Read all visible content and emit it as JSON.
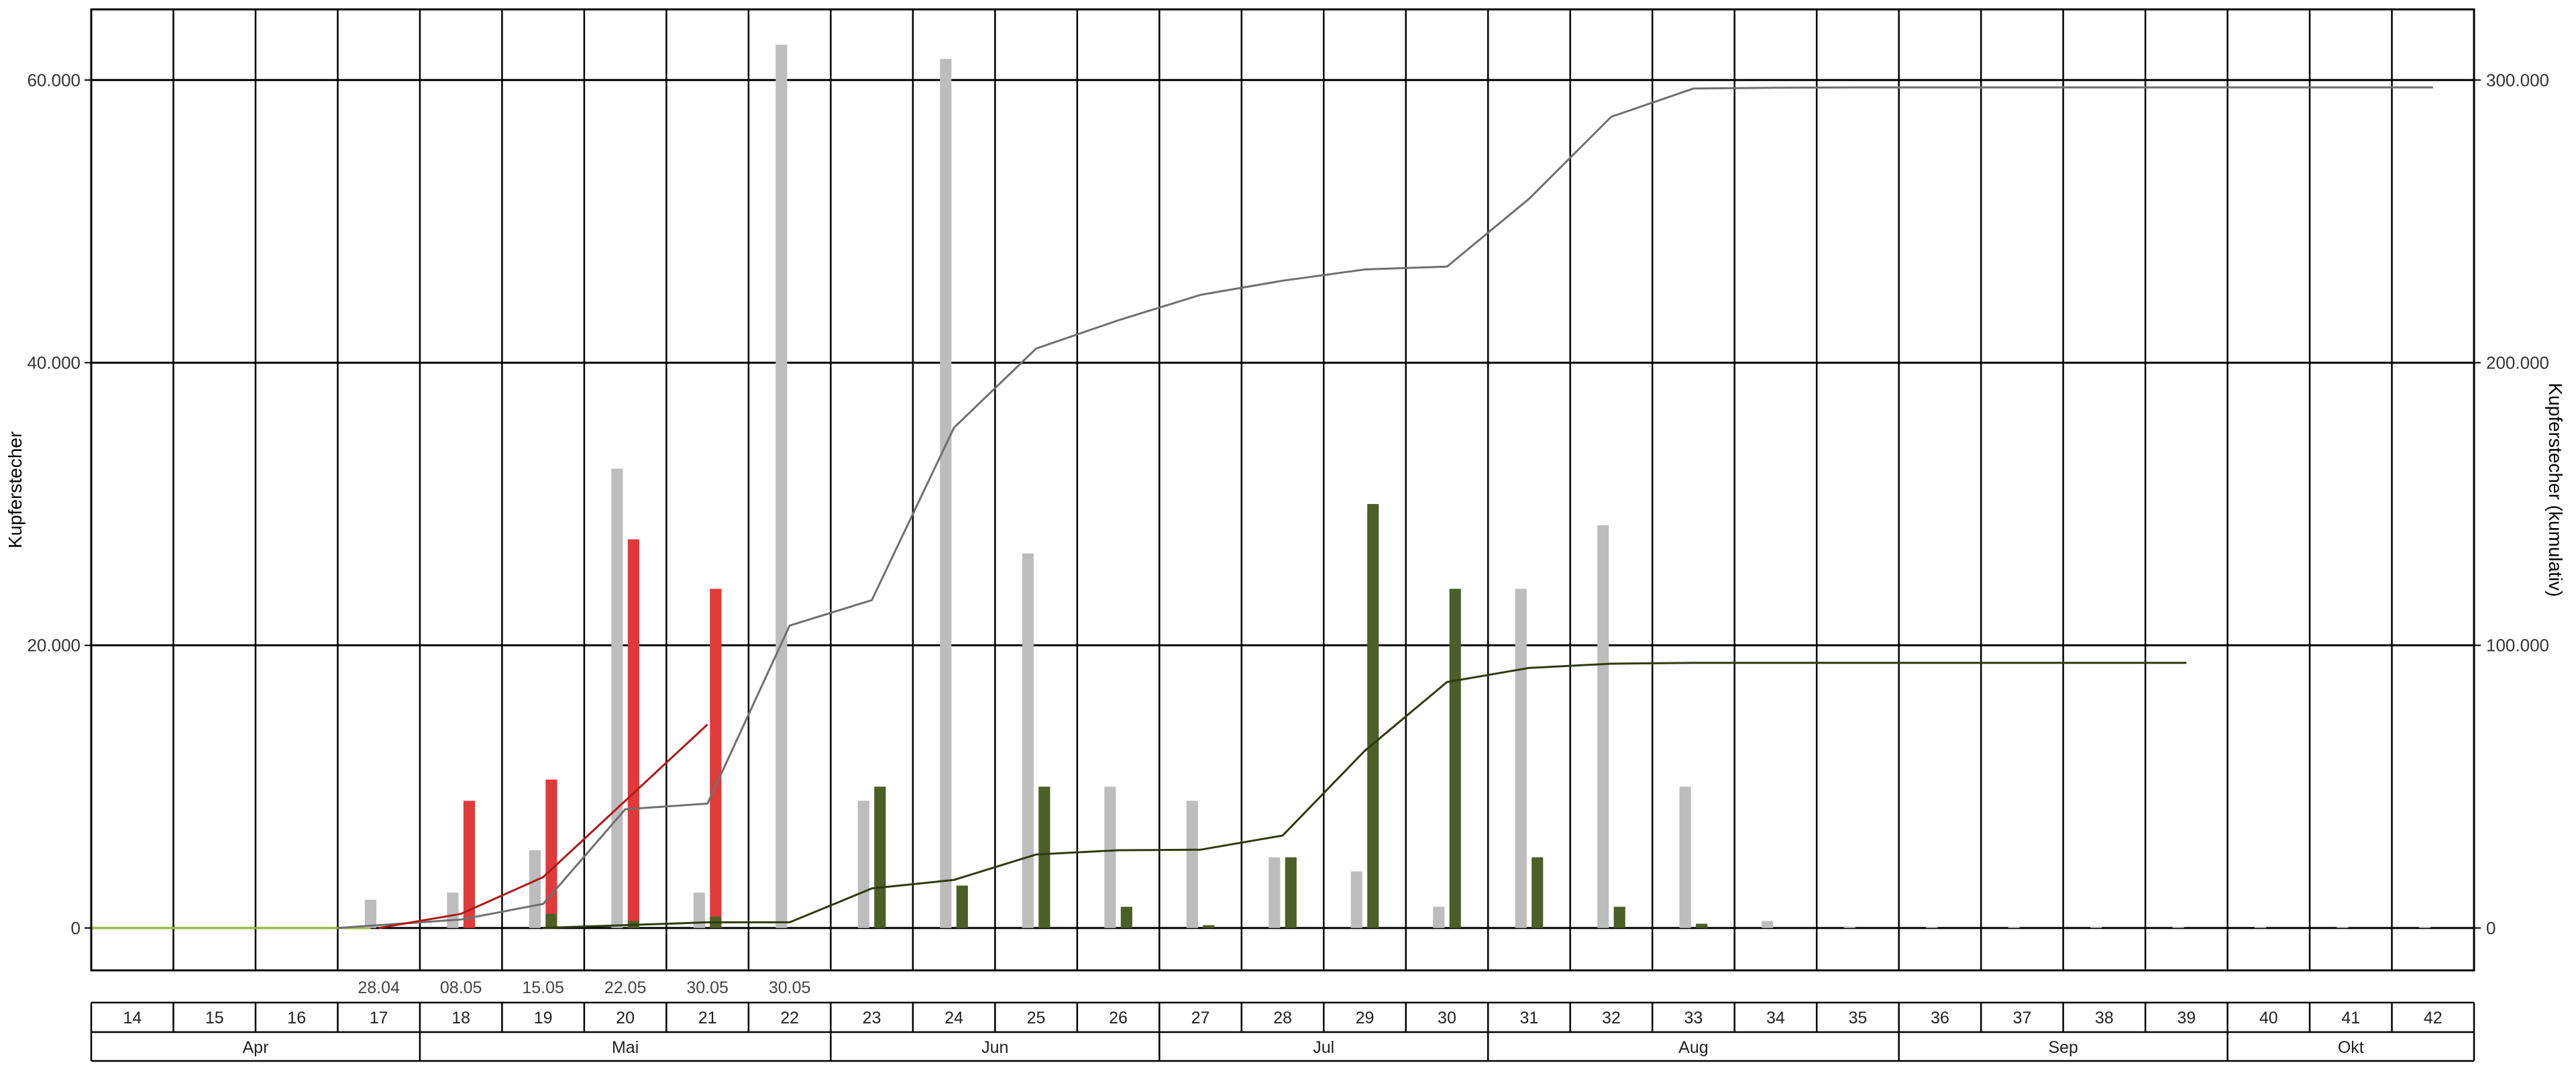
{
  "colors": {
    "grey_bar": "#bdbdbd",
    "red_bar": "#e03a3a",
    "green_bar": "#4d5e27",
    "grey_line": "#707070",
    "red_line": "#b01818",
    "green_line": "#2f3a10",
    "baseline": "#9bbf3a",
    "grid": "#000000"
  },
  "chart_data": {
    "type": "bar",
    "ylabel_left": "Kupferstecher",
    "ylabel_right": "Kupferstecher (kumulativ)",
    "ylim_left": [
      -3000,
      65000
    ],
    "ylim_right": [
      -15000,
      325000
    ],
    "yticks_left": [
      0,
      20000,
      40000,
      60000
    ],
    "ytick_labels_left": [
      "0",
      "20.000",
      "40.000",
      "60.000"
    ],
    "yticks_right": [
      0,
      100000,
      200000,
      300000
    ],
    "ytick_labels_right": [
      "0",
      "100.000",
      "200.000",
      "300.000"
    ],
    "grid": true,
    "weeks": [
      14,
      15,
      16,
      17,
      18,
      19,
      20,
      21,
      22,
      23,
      24,
      25,
      26,
      27,
      28,
      29,
      30,
      31,
      32,
      33,
      34,
      35,
      36,
      37,
      38,
      39,
      40,
      41,
      42
    ],
    "week_labels": [
      "14",
      "15",
      "16",
      "17",
      "18",
      "19",
      "20",
      "21",
      "22",
      "23",
      "24",
      "25",
      "26",
      "27",
      "28",
      "29",
      "30",
      "31",
      "32",
      "33",
      "34",
      "35",
      "36",
      "37",
      "38",
      "39",
      "40",
      "41",
      "42"
    ],
    "months": [
      {
        "label": "Apr",
        "first_week": 14,
        "last_week": 17
      },
      {
        "label": "Mai",
        "first_week": 18,
        "last_week": 22
      },
      {
        "label": "Jun",
        "first_week": 23,
        "last_week": 26
      },
      {
        "label": "Jul",
        "first_week": 27,
        "last_week": 30
      },
      {
        "label": "Aug",
        "first_week": 31,
        "last_week": 35
      },
      {
        "label": "Sep",
        "first_week": 36,
        "last_week": 39
      },
      {
        "label": "Okt",
        "first_week": 40,
        "last_week": 42
      }
    ],
    "date_labels": [
      {
        "week": 17,
        "text": "28.04"
      },
      {
        "week": 18,
        "text": "08.05"
      },
      {
        "week": 19,
        "text": "15.05"
      },
      {
        "week": 20,
        "text": "22.05"
      },
      {
        "week": 21,
        "text": "30.05"
      },
      {
        "week": 22,
        "text": "30.05"
      }
    ],
    "bars_grey": [
      {
        "week": 17,
        "value": 2000
      },
      {
        "week": 18,
        "value": 2500
      },
      {
        "week": 19,
        "value": 5500
      },
      {
        "week": 20,
        "value": 32500
      },
      {
        "week": 21,
        "value": 2500
      },
      {
        "week": 22,
        "value": 62500
      },
      {
        "week": 23,
        "value": 9000
      },
      {
        "week": 24,
        "value": 61500
      },
      {
        "week": 25,
        "value": 26500
      },
      {
        "week": 26,
        "value": 10000
      },
      {
        "week": 27,
        "value": 9000
      },
      {
        "week": 28,
        "value": 5000
      },
      {
        "week": 29,
        "value": 4000
      },
      {
        "week": 30,
        "value": 1500
      },
      {
        "week": 31,
        "value": 24000
      },
      {
        "week": 32,
        "value": 28500
      },
      {
        "week": 33,
        "value": 10000
      },
      {
        "week": 34,
        "value": 500
      },
      {
        "week": 35,
        "value": 100
      },
      {
        "week": 36,
        "value": 80
      },
      {
        "week": 37,
        "value": 60
      },
      {
        "week": 38,
        "value": 60
      },
      {
        "week": 39,
        "value": 50
      },
      {
        "week": 40,
        "value": 50
      },
      {
        "week": 41,
        "value": 50
      },
      {
        "week": 42,
        "value": 50
      }
    ],
    "bars_red": [
      {
        "week": 18,
        "value": 9000
      },
      {
        "week": 19,
        "value": 10500
      },
      {
        "week": 20,
        "value": 27500
      },
      {
        "week": 21,
        "value": 24000
      }
    ],
    "bars_green": [
      {
        "week": 19,
        "value": 1000
      },
      {
        "week": 20,
        "value": 500
      },
      {
        "week": 21,
        "value": 800
      },
      {
        "week": 23,
        "value": 10000
      },
      {
        "week": 24,
        "value": 3000
      },
      {
        "week": 25,
        "value": 10000
      },
      {
        "week": 26,
        "value": 1500
      },
      {
        "week": 27,
        "value": 200
      },
      {
        "week": 28,
        "value": 5000
      },
      {
        "week": 29,
        "value": 30000
      },
      {
        "week": 30,
        "value": 24000
      },
      {
        "week": 31,
        "value": 5000
      },
      {
        "week": 32,
        "value": 1500
      },
      {
        "week": 33,
        "value": 300
      }
    ],
    "line_grey_cumulative": [
      {
        "week": 17,
        "value": 0
      },
      {
        "week": 18,
        "value": 3000
      },
      {
        "week": 19,
        "value": 8500
      },
      {
        "week": 20,
        "value": 42000
      },
      {
        "week": 21,
        "value": 44000
      },
      {
        "week": 22,
        "value": 107000
      },
      {
        "week": 23,
        "value": 116000
      },
      {
        "week": 24,
        "value": 177000
      },
      {
        "week": 25,
        "value": 205000
      },
      {
        "week": 26,
        "value": 215000
      },
      {
        "week": 27,
        "value": 224000
      },
      {
        "week": 28,
        "value": 229000
      },
      {
        "week": 29,
        "value": 233000
      },
      {
        "week": 30,
        "value": 234000
      },
      {
        "week": 31,
        "value": 258000
      },
      {
        "week": 32,
        "value": 287000
      },
      {
        "week": 33,
        "value": 297000
      },
      {
        "week": 34,
        "value": 297300
      },
      {
        "week": 35,
        "value": 297400
      },
      {
        "week": 36,
        "value": 297400
      },
      {
        "week": 37,
        "value": 297400
      },
      {
        "week": 38,
        "value": 297400
      },
      {
        "week": 39,
        "value": 297400
      },
      {
        "week": 40,
        "value": 297400
      },
      {
        "week": 41,
        "value": 297400
      },
      {
        "week": 42,
        "value": 297400
      }
    ],
    "line_red_cumulative": [
      {
        "week": 17,
        "value": 0
      },
      {
        "week": 18,
        "value": 5000
      },
      {
        "week": 19,
        "value": 18000
      },
      {
        "week": 20,
        "value": 45000
      },
      {
        "week": 21,
        "value": 72000
      }
    ],
    "line_green_cumulative": [
      {
        "week": 19,
        "value": 0
      },
      {
        "week": 20,
        "value": 1000
      },
      {
        "week": 21,
        "value": 2000
      },
      {
        "week": 22,
        "value": 2000
      },
      {
        "week": 23,
        "value": 14000
      },
      {
        "week": 24,
        "value": 17000
      },
      {
        "week": 25,
        "value": 26000
      },
      {
        "week": 26,
        "value": 27500
      },
      {
        "week": 27,
        "value": 27700
      },
      {
        "week": 28,
        "value": 32700
      },
      {
        "week": 29,
        "value": 62700
      },
      {
        "week": 30,
        "value": 87000
      },
      {
        "week": 31,
        "value": 92000
      },
      {
        "week": 32,
        "value": 93500
      },
      {
        "week": 33,
        "value": 93800
      },
      {
        "week": 34,
        "value": 93800
      },
      {
        "week": 35,
        "value": 93800
      },
      {
        "week": 36,
        "value": 93800
      },
      {
        "week": 37,
        "value": 93800
      },
      {
        "week": 38,
        "value": 93800
      },
      {
        "week": 39,
        "value": 93800
      }
    ]
  }
}
